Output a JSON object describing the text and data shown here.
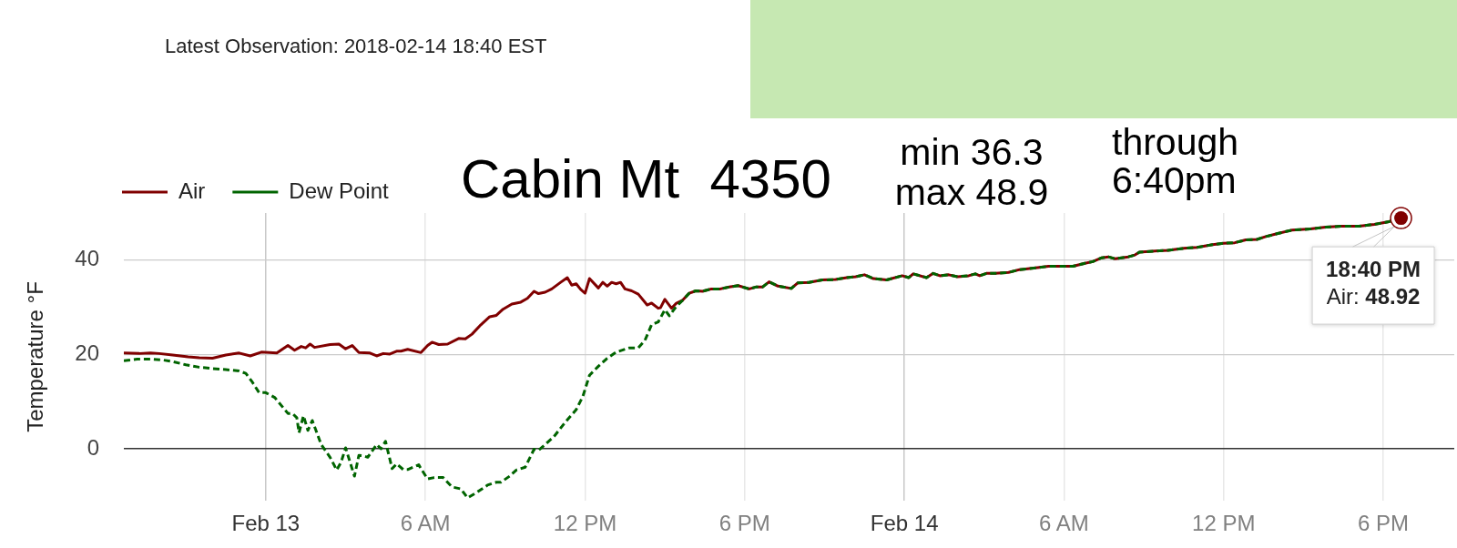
{
  "chart_data": {
    "type": "line",
    "title": "Cabin Mt  4350",
    "ylabel": "Temperature °F",
    "annotations": [
      "Latest Observation: 2018-02-14 18:40 EST",
      "min 36.3",
      "max 48.9",
      "through 6:40pm",
      {
        "text": "18:40 PM\nAir: 48.92",
        "x": "2018-02-14T18:40",
        "y": 48.92
      }
    ],
    "xlim": [
      "2018-02-12T18:40",
      "2018-02-14T20:40"
    ],
    "xticks": [
      {
        "value": "2018-02-13T00:00",
        "label": "Feb 13"
      },
      {
        "value": "2018-02-13T06:00",
        "label": "6 AM"
      },
      {
        "value": "2018-02-13T12:00",
        "label": "12 PM"
      },
      {
        "value": "2018-02-13T18:00",
        "label": "6 PM"
      },
      {
        "value": "2018-02-14T00:00",
        "label": "Feb 14"
      },
      {
        "value": "2018-02-14T06:00",
        "label": "6 AM"
      },
      {
        "value": "2018-02-14T12:00",
        "label": "12 PM"
      },
      {
        "value": "2018-02-14T18:00",
        "label": "6 PM"
      }
    ],
    "ylim": [
      -11,
      50
    ],
    "yticks": [
      0,
      20,
      40
    ],
    "grid": true,
    "legend": "top left",
    "marker": "none",
    "series": [
      {
        "name": "Air",
        "color": "#800000",
        "line_style": "solid",
        "x": [
          "2018-02-12T18:40",
          "2018-02-12T19:15",
          "2018-02-12T19:40",
          "2018-02-12T20:00",
          "2018-02-12T20:30",
          "2018-02-12T21:05",
          "2018-02-12T21:30",
          "2018-02-12T22:00",
          "2018-02-12T22:30",
          "2018-02-12T23:00",
          "2018-02-12T23:25",
          "2018-02-12T23:50",
          "2018-02-13T00:25",
          "2018-02-13T00:50",
          "2018-02-13T01:05",
          "2018-02-13T01:20",
          "2018-02-13T01:30",
          "2018-02-13T01:40",
          "2018-02-13T01:50",
          "2018-02-13T02:25",
          "2018-02-13T02:45",
          "2018-02-13T03:00",
          "2018-02-13T03:15",
          "2018-02-13T03:30",
          "2018-02-13T03:55",
          "2018-02-13T04:10",
          "2018-02-13T04:25",
          "2018-02-13T04:40",
          "2018-02-13T04:55",
          "2018-02-13T05:05",
          "2018-02-13T05:20",
          "2018-02-13T05:50",
          "2018-02-13T06:05",
          "2018-02-13T06:15",
          "2018-02-13T06:30",
          "2018-02-13T06:50",
          "2018-02-13T07:15",
          "2018-02-13T07:30",
          "2018-02-13T07:45",
          "2018-02-13T08:05",
          "2018-02-13T08:25",
          "2018-02-13T08:40",
          "2018-02-13T08:55",
          "2018-02-13T09:15",
          "2018-02-13T09:35",
          "2018-02-13T09:50",
          "2018-02-13T10:05",
          "2018-02-13T10:15",
          "2018-02-13T10:30",
          "2018-02-13T10:45",
          "2018-02-13T11:05",
          "2018-02-13T11:20",
          "2018-02-13T11:30",
          "2018-02-13T11:40",
          "2018-02-13T11:50",
          "2018-02-13T12:00",
          "2018-02-13T12:10",
          "2018-02-13T12:30",
          "2018-02-13T12:40",
          "2018-02-13T12:50",
          "2018-02-13T13:00",
          "2018-02-13T13:10",
          "2018-02-13T13:20",
          "2018-02-13T13:30",
          "2018-02-13T13:45",
          "2018-02-13T14:00",
          "2018-02-13T14:20",
          "2018-02-13T14:30",
          "2018-02-13T14:45",
          "2018-02-13T14:50",
          "2018-02-13T15:00",
          "2018-02-13T15:15",
          "2018-02-13T15:25",
          "2018-02-13T15:40",
          "2018-02-13T15:55",
          "2018-02-13T16:10",
          "2018-02-13T16:25",
          "2018-02-13T16:45",
          "2018-02-13T17:05",
          "2018-02-13T17:25",
          "2018-02-13T17:45",
          "2018-02-13T18:10",
          "2018-02-13T18:25",
          "2018-02-13T18:40",
          "2018-02-13T18:55",
          "2018-02-13T19:15",
          "2018-02-13T19:45",
          "2018-02-13T20:00",
          "2018-02-13T20:25",
          "2018-02-13T20:55",
          "2018-02-13T21:25",
          "2018-02-13T21:50",
          "2018-02-13T22:10",
          "2018-02-13T22:30",
          "2018-02-13T22:50",
          "2018-02-13T23:20",
          "2018-02-13T23:55",
          "2018-02-14T00:10",
          "2018-02-14T00:20",
          "2018-02-14T00:50",
          "2018-02-14T01:05",
          "2018-02-14T01:20",
          "2018-02-14T01:40",
          "2018-02-14T02:00",
          "2018-02-14T02:25",
          "2018-02-14T02:40",
          "2018-02-14T02:50",
          "2018-02-14T03:05",
          "2018-02-14T03:25",
          "2018-02-14T03:55",
          "2018-02-14T04:20",
          "2018-02-14T05:00",
          "2018-02-14T05:25",
          "2018-02-14T06:20",
          "2018-02-14T06:45",
          "2018-02-14T07:05",
          "2018-02-14T07:25",
          "2018-02-14T07:40",
          "2018-02-14T07:55",
          "2018-02-14T08:25",
          "2018-02-14T08:40",
          "2018-02-14T08:50",
          "2018-02-14T09:35",
          "2018-02-14T09:55",
          "2018-02-14T10:30",
          "2018-02-14T11:00",
          "2018-02-14T11:35",
          "2018-02-14T12:00",
          "2018-02-14T12:25",
          "2018-02-14T12:50",
          "2018-02-14T13:15",
          "2018-02-14T13:35",
          "2018-02-14T14:00",
          "2018-02-14T14:35",
          "2018-02-14T15:15",
          "2018-02-14T15:50",
          "2018-02-14T16:25",
          "2018-02-14T17:05",
          "2018-02-14T17:40",
          "2018-02-14T18:10",
          "2018-02-14T18:40"
        ],
        "values": [
          20.3,
          20.2,
          20.3,
          20.2,
          19.9,
          19.5,
          19.3,
          19.2,
          19.9,
          20.3,
          19.7,
          20.5,
          20.3,
          21.9,
          20.9,
          21.7,
          21.4,
          22.2,
          21.5,
          22.1,
          22.2,
          21.2,
          21.9,
          20.4,
          20.3,
          19.7,
          20.2,
          20.1,
          20.7,
          20.7,
          21.1,
          20.4,
          21.9,
          22.6,
          22.1,
          22.2,
          23.4,
          23.3,
          24.3,
          26.3,
          28.0,
          28.3,
          29.6,
          30.7,
          31.1,
          31.9,
          33.4,
          32.9,
          33.2,
          33.9,
          35.3,
          36.3,
          34.7,
          35.0,
          33.8,
          33.0,
          36.1,
          34.1,
          35.3,
          34.5,
          35.3,
          35.0,
          35.3,
          33.9,
          33.5,
          32.8,
          30.5,
          30.9,
          29.8,
          29.9,
          31.7,
          29.8,
          30.8,
          31.5,
          33.0,
          33.5,
          33.4,
          33.9,
          33.9,
          34.3,
          34.6,
          33.9,
          34.3,
          34.3,
          35.4,
          34.5,
          34.0,
          35.2,
          35.3,
          35.8,
          35.9,
          36.3,
          36.5,
          36.9,
          36.1,
          35.8,
          36.7,
          36.3,
          37.1,
          36.3,
          37.2,
          36.7,
          36.9,
          36.5,
          36.7,
          37.1,
          36.7,
          37.2,
          37.2,
          37.4,
          38.0,
          38.4,
          38.7,
          38.7,
          39.3,
          39.7,
          40.5,
          40.7,
          40.3,
          40.7,
          41.1,
          41.7,
          42.0,
          42.1,
          42.5,
          42.7,
          43.3,
          43.6,
          43.7,
          44.3,
          44.4,
          45.0,
          45.6,
          46.4,
          46.6,
          47.0,
          47.2,
          47.2,
          47.6,
          48.1,
          48.92
        ]
      },
      {
        "name": "Dew Point",
        "color": "#006400",
        "line_style": "dashed",
        "x": [
          "2018-02-12T18:40",
          "2018-02-12T19:10",
          "2018-02-12T19:40",
          "2018-02-12T20:10",
          "2018-02-12T20:30",
          "2018-02-12T21:00",
          "2018-02-12T21:30",
          "2018-02-12T22:00",
          "2018-02-12T22:30",
          "2018-02-12T23:00",
          "2018-02-12T23:15",
          "2018-02-12T23:30",
          "2018-02-12T23:45",
          "2018-02-13T00:00",
          "2018-02-13T00:20",
          "2018-02-13T00:35",
          "2018-02-13T00:50",
          "2018-02-13T01:00",
          "2018-02-13T01:10",
          "2018-02-13T01:15",
          "2018-02-13T01:25",
          "2018-02-13T01:35",
          "2018-02-13T01:45",
          "2018-02-13T02:05",
          "2018-02-13T02:25",
          "2018-02-13T02:40",
          "2018-02-13T02:50",
          "2018-02-13T03:00",
          "2018-02-13T03:10",
          "2018-02-13T03:20",
          "2018-02-13T03:30",
          "2018-02-13T03:40",
          "2018-02-13T03:50",
          "2018-02-13T04:10",
          "2018-02-13T04:20",
          "2018-02-13T04:30",
          "2018-02-13T04:45",
          "2018-02-13T04:55",
          "2018-02-13T05:10",
          "2018-02-13T05:20",
          "2018-02-13T05:45",
          "2018-02-13T05:50",
          "2018-02-13T06:05",
          "2018-02-13T06:20",
          "2018-02-13T06:40",
          "2018-02-13T07:00",
          "2018-02-13T07:20",
          "2018-02-13T07:35",
          "2018-02-13T07:55",
          "2018-02-13T08:20",
          "2018-02-13T08:40",
          "2018-02-13T08:50",
          "2018-02-13T09:10",
          "2018-02-13T09:25",
          "2018-02-13T09:45",
          "2018-02-13T10:05",
          "2018-02-13T10:15",
          "2018-02-13T10:30",
          "2018-02-13T10:50",
          "2018-02-13T11:15",
          "2018-02-13T11:40",
          "2018-02-13T11:55",
          "2018-02-13T12:10",
          "2018-02-13T12:30",
          "2018-02-13T12:50",
          "2018-02-13T13:10",
          "2018-02-13T13:40",
          "2018-02-13T14:00",
          "2018-02-13T14:15",
          "2018-02-13T14:30",
          "2018-02-13T14:45",
          "2018-02-13T15:00",
          "2018-02-13T15:10",
          "2018-02-13T15:25",
          "2018-02-13T15:40",
          "2018-02-13T15:55",
          "2018-02-13T16:10",
          "2018-02-13T16:25",
          "2018-02-13T16:45",
          "2018-02-13T17:05",
          "2018-02-13T17:25",
          "2018-02-13T17:45",
          "2018-02-13T18:10",
          "2018-02-13T18:25",
          "2018-02-13T18:40",
          "2018-02-13T18:55",
          "2018-02-13T19:15",
          "2018-02-13T19:45",
          "2018-02-13T20:00",
          "2018-02-13T20:25",
          "2018-02-13T20:55",
          "2018-02-13T21:25",
          "2018-02-13T21:50",
          "2018-02-13T22:10",
          "2018-02-13T22:30",
          "2018-02-13T22:50",
          "2018-02-13T23:20",
          "2018-02-13T23:55",
          "2018-02-14T00:10",
          "2018-02-14T00:20",
          "2018-02-14T00:50",
          "2018-02-14T01:05",
          "2018-02-14T01:20",
          "2018-02-14T01:40",
          "2018-02-14T02:00",
          "2018-02-14T02:25",
          "2018-02-14T02:40",
          "2018-02-14T02:50",
          "2018-02-14T03:05",
          "2018-02-14T03:25",
          "2018-02-14T03:55",
          "2018-02-14T04:20",
          "2018-02-14T05:00",
          "2018-02-14T05:25",
          "2018-02-14T06:20",
          "2018-02-14T06:45",
          "2018-02-14T07:05",
          "2018-02-14T07:25",
          "2018-02-14T07:40",
          "2018-02-14T07:55",
          "2018-02-14T08:25",
          "2018-02-14T08:40",
          "2018-02-14T08:50",
          "2018-02-14T09:35",
          "2018-02-14T09:55",
          "2018-02-14T10:30",
          "2018-02-14T11:00",
          "2018-02-14T11:35",
          "2018-02-14T12:00",
          "2018-02-14T12:25",
          "2018-02-14T12:50",
          "2018-02-14T13:15",
          "2018-02-14T13:35",
          "2018-02-14T14:00",
          "2018-02-14T14:35",
          "2018-02-14T15:15",
          "2018-02-14T15:50",
          "2018-02-14T16:25",
          "2018-02-14T17:05",
          "2018-02-14T17:40",
          "2018-02-14T18:10",
          "2018-02-14T18:40"
        ],
        "values": [
          18.7,
          19.0,
          19.0,
          18.8,
          18.5,
          17.8,
          17.3,
          17.0,
          16.8,
          16.5,
          16.0,
          14.1,
          11.9,
          11.9,
          10.9,
          9.2,
          7.5,
          7.5,
          6.6,
          3.4,
          7.0,
          3.9,
          6.0,
          0.9,
          -1.8,
          -4.5,
          -2.8,
          0.2,
          -2.8,
          -5.8,
          -1.4,
          -1.5,
          -1.8,
          0.9,
          0.0,
          1.6,
          -4.2,
          -3.2,
          -4.4,
          -4.4,
          -3.4,
          -4.2,
          -6.4,
          -6.1,
          -6.1,
          -8.1,
          -8.5,
          -10.4,
          -9.3,
          -7.7,
          -7.1,
          -7.1,
          -5.8,
          -4.5,
          -3.9,
          -0.1,
          -0.3,
          0.9,
          2.6,
          5.6,
          8.3,
          11.1,
          15.6,
          17.5,
          19.2,
          20.5,
          21.4,
          21.4,
          23.0,
          26.3,
          26.9,
          29.5,
          28.2,
          30.1,
          31.5,
          33.0,
          33.5,
          33.4,
          33.9,
          33.9,
          34.3,
          34.6,
          33.9,
          34.3,
          34.3,
          35.4,
          34.5,
          34.0,
          35.2,
          35.3,
          35.8,
          35.9,
          36.3,
          36.5,
          36.9,
          36.1,
          35.8,
          36.7,
          36.3,
          37.1,
          36.3,
          37.2,
          36.7,
          36.9,
          36.5,
          36.7,
          37.1,
          36.7,
          37.2,
          37.2,
          37.4,
          38.0,
          38.4,
          38.7,
          38.7,
          39.3,
          39.7,
          40.5,
          40.7,
          40.3,
          40.7,
          41.1,
          41.7,
          42.0,
          42.1,
          42.5,
          42.7,
          43.3,
          43.6,
          43.7,
          44.3,
          44.4,
          45.0,
          45.6,
          46.4,
          46.6,
          47.0,
          47.2,
          47.2,
          47.6,
          48.1,
          48.9
        ]
      }
    ]
  }
}
